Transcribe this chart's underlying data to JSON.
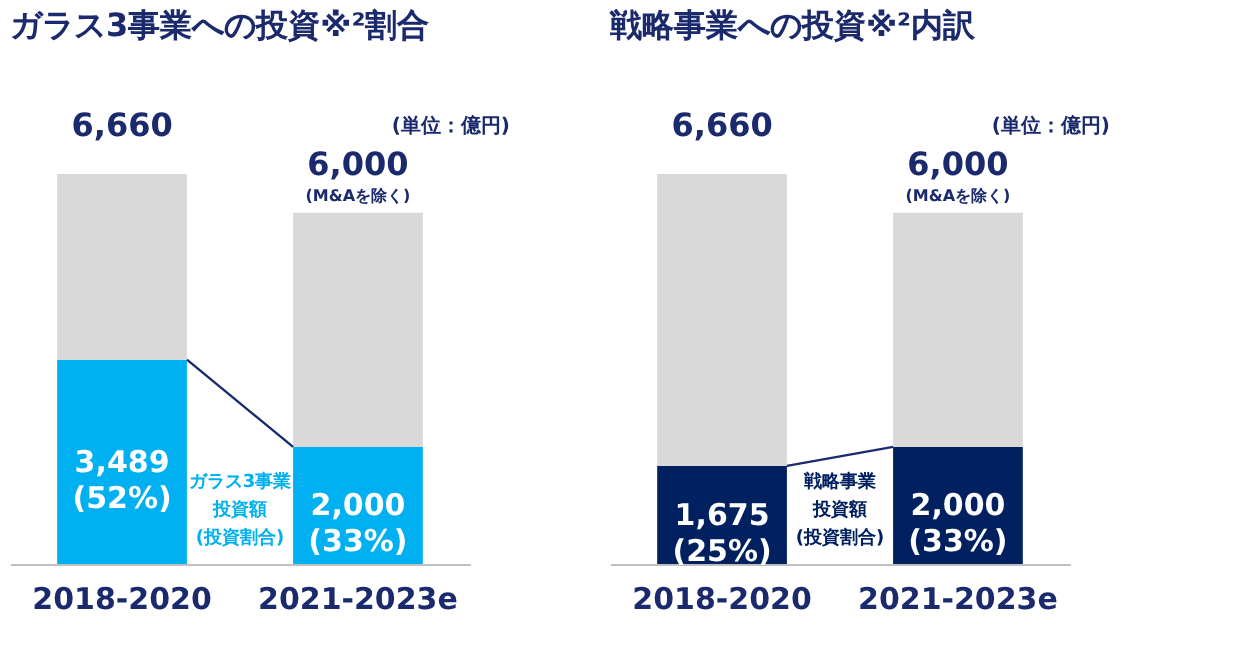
{
  "chart_data": [
    {
      "type": "bar",
      "title": "ガラス3事業への投資※²割合",
      "subtitle": "(単位：億円)",
      "categories": [
        "2018-2020",
        "2021-2023e"
      ],
      "stacked": true,
      "series": [
        {
          "color": "#00b0f0",
          "values": [
            3489,
            2000
          ],
          "value_labels": [
            "3,489\n(52%)",
            "2,000\n(33%)"
          ]
        },
        {
          "color": "#d9d9d9",
          "values": [
            3171,
            4000
          ]
        }
      ],
      "totals": [
        "6,660",
        "6,000"
      ],
      "annotations": [
        {
          "text": "(M&Aを除く)",
          "x": "2021-2023e",
          "y": 6000
        },
        "ガラス3事業",
        "投資額",
        "(投資割合)"
      ],
      "legend": false,
      "grid": false
    },
    {
      "type": "bar",
      "title": "戦略事業への投資※²内訳",
      "subtitle": "(単位：億円)",
      "categories": [
        "2018-2020",
        "2021-2023e"
      ],
      "stacked": true,
      "series": [
        {
          "color": "#002060",
          "values": [
            1675,
            2000
          ],
          "value_labels": [
            "1,675\n(25%)",
            "2,000\n(33%)"
          ]
        },
        {
          "color": "#d9d9d9",
          "values": [
            4985,
            4000
          ]
        }
      ],
      "totals": [
        "6,660",
        "6,000"
      ],
      "annotations": [
        {
          "text": "(M&Aを除く)",
          "x": "2021-2023e",
          "y": 6000
        },
        "戦略事業",
        "投資額",
        "(投資割合)"
      ],
      "legend": false,
      "grid": false
    }
  ]
}
